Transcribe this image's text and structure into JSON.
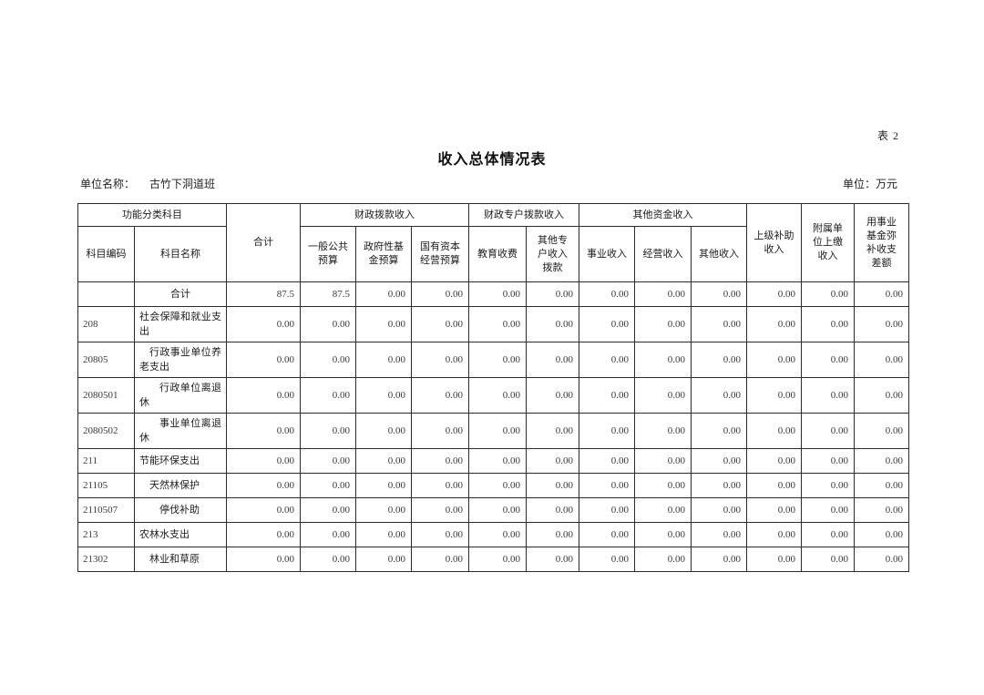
{
  "page": {
    "corner_label": "表 2",
    "title": "收入总体情况表",
    "unit_name_label": "单位名称：",
    "unit_name_value": "古竹下洞道班",
    "money_unit_label": "单位：万元"
  },
  "table": {
    "header": {
      "func_group": "功能分类科目",
      "code": "科目编码",
      "name": "科目名称",
      "total": "合计",
      "fiscal_group": "财政拨款收入",
      "general_budget": "一般公共\n预算",
      "gov_fund_budget": "政府性基\n金预算",
      "state_capital_budget": "国有资本\n经营预算",
      "special_group": "财政专户拨款收入",
      "edu_fee": "教育收费",
      "other_special": "其他专\n户收入\n拨款",
      "other_funds_group": "其他资金收入",
      "business_income": "事业收入",
      "operating_income": "经营收入",
      "other_income": "其他收入",
      "superior_subsidy": "上级补助\n收入",
      "affiliate_remit": "附属单\n位上缴\n收入",
      "fund_balance": "用事业\n基金弥\n补收支\n差额"
    },
    "rows": [
      {
        "code": "",
        "name": "合计",
        "center": true,
        "indent": 0,
        "values": [
          "87.5",
          "87.5",
          "0.00",
          "0.00",
          "0.00",
          "0.00",
          "0.00",
          "0.00",
          "0.00",
          "0.00",
          "0.00",
          "0.00"
        ]
      },
      {
        "code": "208",
        "name": "社会保障和就业支出",
        "center": false,
        "indent": 0,
        "values": [
          "0.00",
          "0.00",
          "0.00",
          "0.00",
          "0.00",
          "0.00",
          "0.00",
          "0.00",
          "0.00",
          "0.00",
          "0.00",
          "0.00"
        ]
      },
      {
        "code": "20805",
        "name": "行政事业单位养老支出",
        "center": false,
        "indent": 1,
        "values": [
          "0.00",
          "0.00",
          "0.00",
          "0.00",
          "0.00",
          "0.00",
          "0.00",
          "0.00",
          "0.00",
          "0.00",
          "0.00",
          "0.00"
        ]
      },
      {
        "code": "2080501",
        "name": "行政单位离退休",
        "center": false,
        "indent": 2,
        "values": [
          "0.00",
          "0.00",
          "0.00",
          "0.00",
          "0.00",
          "0.00",
          "0.00",
          "0.00",
          "0.00",
          "0.00",
          "0.00",
          "0.00"
        ]
      },
      {
        "code": "2080502",
        "name": "事业单位离退休",
        "center": false,
        "indent": 2,
        "values": [
          "0.00",
          "0.00",
          "0.00",
          "0.00",
          "0.00",
          "0.00",
          "0.00",
          "0.00",
          "0.00",
          "0.00",
          "0.00",
          "0.00"
        ]
      },
      {
        "code": "211",
        "name": "节能环保支出",
        "center": false,
        "indent": 0,
        "values": [
          "0.00",
          "0.00",
          "0.00",
          "0.00",
          "0.00",
          "0.00",
          "0.00",
          "0.00",
          "0.00",
          "0.00",
          "0.00",
          "0.00"
        ]
      },
      {
        "code": "21105",
        "name": "天然林保护",
        "center": false,
        "indent": 1,
        "values": [
          "0.00",
          "0.00",
          "0.00",
          "0.00",
          "0.00",
          "0.00",
          "0.00",
          "0.00",
          "0.00",
          "0.00",
          "0.00",
          "0.00"
        ]
      },
      {
        "code": "2110507",
        "name": "停伐补助",
        "center": false,
        "indent": 2,
        "values": [
          "0.00",
          "0.00",
          "0.00",
          "0.00",
          "0.00",
          "0.00",
          "0.00",
          "0.00",
          "0.00",
          "0.00",
          "0.00",
          "0.00"
        ]
      },
      {
        "code": "213",
        "name": "农林水支出",
        "center": false,
        "indent": 0,
        "values": [
          "0.00",
          "0.00",
          "0.00",
          "0.00",
          "0.00",
          "0.00",
          "0.00",
          "0.00",
          "0.00",
          "0.00",
          "0.00",
          "0.00"
        ]
      },
      {
        "code": "21302",
        "name": "林业和草原",
        "center": false,
        "indent": 1,
        "values": [
          "0.00",
          "0.00",
          "0.00",
          "0.00",
          "0.00",
          "0.00",
          "0.00",
          "0.00",
          "0.00",
          "0.00",
          "0.00",
          "0.00"
        ]
      }
    ]
  }
}
